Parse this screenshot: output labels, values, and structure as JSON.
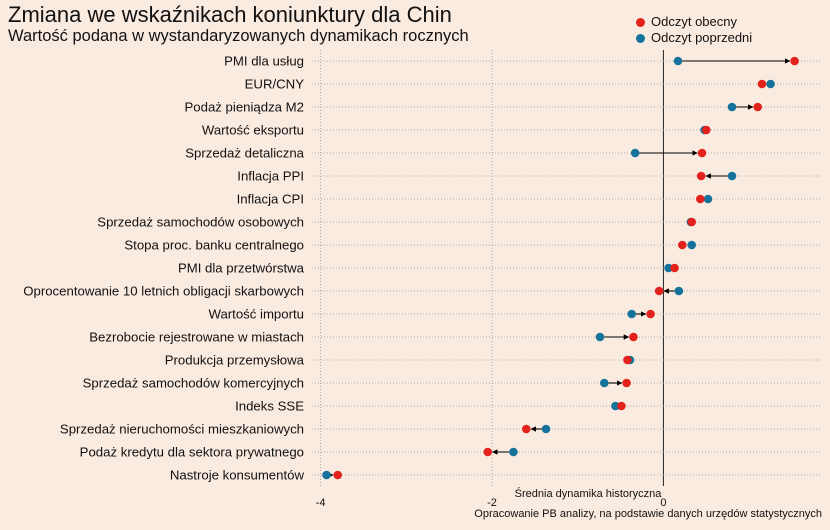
{
  "chart_data": {
    "type": "dumbbell",
    "title": "Zmiana we wskaźnikach koniunktury dla Chin",
    "subtitle": "Wartość podana w wystandaryzowanych dynamikach rocznych",
    "xlim": [
      -4.1,
      1.85
    ],
    "xticks": [
      -4,
      -2,
      0
    ],
    "grid": true,
    "legend_position": "top-right",
    "series": [
      {
        "name": "Odczyt obecny",
        "color": "#e3231b"
      },
      {
        "name": "Odczyt poprzedni",
        "color": "#14729b"
      }
    ],
    "categories": [
      "PMI dla usług",
      "EUR/CNY",
      "Podaż pieniądza M2",
      "Wartość eksportu",
      "Sprzedaż detaliczna",
      "Inflacja PPI",
      "Inflacja CPI",
      "Sprzedaż samochodów osobowych",
      "Stopa proc. banku centralnego",
      "PMI dla przetwórstwa",
      "Oprocentowanie 10 letnich obligacji skarbowych",
      "Wartość importu",
      "Bezrobocie rejestrowane w miastach",
      "Produkcja przemysłowa",
      "Sprzedaż samochodów komercyjnych",
      "Indeks SSE",
      "Sprzedaż nieruchomości mieszkaniowych",
      "Podaż kredytu dla sektora prywatnego",
      "Nastroje konsumentów"
    ],
    "current": [
      1.53,
      1.15,
      1.1,
      0.5,
      0.45,
      0.44,
      0.43,
      0.33,
      0.22,
      0.13,
      -0.05,
      -0.15,
      -0.35,
      -0.42,
      -0.43,
      -0.49,
      -1.6,
      -2.05,
      -3.8
    ],
    "previous": [
      0.17,
      1.25,
      0.8,
      0.48,
      -0.33,
      0.8,
      0.52,
      0.32,
      0.33,
      0.06,
      0.18,
      -0.37,
      -0.74,
      -0.39,
      -0.69,
      -0.56,
      -1.37,
      -1.75,
      -3.93
    ],
    "annotation": "Średnia dynamika historyczna",
    "source": "Opracowanie  PB analizy, na podstawie danych urzędów statystycznych"
  }
}
